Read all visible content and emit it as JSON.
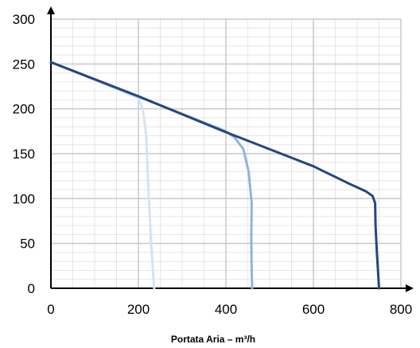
{
  "chart_data": {
    "type": "line",
    "title": "",
    "xlabel": "Portata Aria – m³/h",
    "ylabel": "",
    "xlim": [
      0,
      800
    ],
    "ylim": [
      0,
      300
    ],
    "xticks": [
      0,
      200,
      400,
      600,
      800
    ],
    "yticks": [
      0,
      50,
      100,
      150,
      200,
      250,
      300
    ],
    "grid": true,
    "legend": "none",
    "series": [
      {
        "color": "#d6e3f2",
        "points": [
          [
            0,
            252
          ],
          [
            200,
            212
          ],
          [
            210,
            200
          ],
          [
            218,
            170
          ],
          [
            222,
            120
          ],
          [
            228,
            60
          ],
          [
            233,
            20
          ],
          [
            236,
            0
          ]
        ]
      },
      {
        "color": "#8fb3df",
        "points": [
          [
            0,
            252
          ],
          [
            400,
            175
          ],
          [
            420,
            168
          ],
          [
            440,
            155
          ],
          [
            452,
            130
          ],
          [
            459,
            95
          ],
          [
            458,
            55
          ],
          [
            459,
            20
          ],
          [
            460,
            0
          ]
        ]
      },
      {
        "color": "#24467f",
        "points": [
          [
            0,
            252
          ],
          [
            200,
            214
          ],
          [
            400,
            174
          ],
          [
            500,
            155
          ],
          [
            600,
            136
          ],
          [
            680,
            117
          ],
          [
            720,
            108
          ],
          [
            735,
            103
          ],
          [
            741,
            95
          ],
          [
            742,
            70
          ],
          [
            745,
            40
          ],
          [
            750,
            0
          ]
        ]
      }
    ]
  }
}
